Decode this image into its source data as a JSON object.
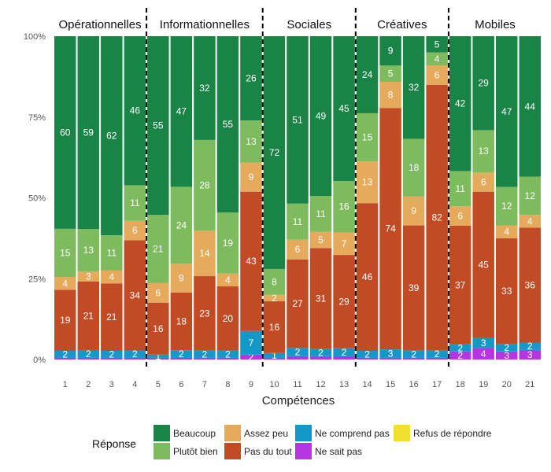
{
  "chart_data": {
    "type": "bar",
    "stacked": true,
    "percent": true,
    "xlabel": "Compétences",
    "ylabel": "",
    "ylim": [
      0,
      100
    ],
    "yticks": [
      "0%",
      "25%",
      "50%",
      "75%",
      "100%"
    ],
    "categories": [
      "1",
      "2",
      "3",
      "4",
      "5",
      "6",
      "7",
      "8",
      "9",
      "10",
      "11",
      "12",
      "13",
      "14",
      "15",
      "16",
      "17",
      "18",
      "19",
      "20",
      "21"
    ],
    "groups": [
      {
        "name": "Opérationnelles",
        "categories": [
          "1",
          "2",
          "3",
          "4"
        ]
      },
      {
        "name": "Informationnelles",
        "categories": [
          "5",
          "6",
          "7",
          "8",
          "9"
        ]
      },
      {
        "name": "Sociales",
        "categories": [
          "10",
          "11",
          "12",
          "13"
        ]
      },
      {
        "name": "Créatives",
        "categories": [
          "14",
          "15",
          "16",
          "17"
        ]
      },
      {
        "name": "Mobiles",
        "categories": [
          "18",
          "19",
          "20",
          "21"
        ]
      }
    ],
    "legend": {
      "title": "Réponse",
      "position": "bottom",
      "order": [
        "Beaucoup",
        "Plutôt bien",
        "Assez peu",
        "Pas du tout",
        "Ne comprend pas",
        "Ne sait pas",
        "Refus de répondre"
      ]
    },
    "series": [
      {
        "name": "Ne sait pas",
        "color": "#b535e0",
        "values": [
          0.5,
          0.5,
          0.5,
          0.5,
          0.5,
          0.5,
          0.5,
          0.5,
          1.5,
          0.5,
          1,
          1,
          1,
          0.5,
          0.5,
          0.5,
          0.5,
          2.5,
          3.5,
          2.5,
          3
        ],
        "labels": [
          "",
          "",
          "",
          "",
          "",
          "",
          "",
          "",
          "2",
          "",
          "",
          "",
          "",
          "",
          "",
          "",
          "",
          "2",
          "4",
          "3",
          "3"
        ]
      },
      {
        "name": "Ne comprend pas",
        "color": "#1499c7",
        "values": [
          2.2,
          2.4,
          2.2,
          2.3,
          1,
          2.4,
          2.2,
          2.3,
          7.3,
          1.5,
          2.5,
          2.2,
          2.5,
          2.2,
          2.6,
          2.3,
          2.4,
          2.2,
          3.3,
          2.3,
          2.3
        ],
        "labels": [
          "2",
          "2",
          "2",
          "2",
          "1",
          "2",
          "2",
          "2",
          "7",
          "1",
          "2",
          "2",
          "2",
          "2",
          "3",
          "2",
          "2",
          "2",
          "3",
          "2",
          "2"
        ]
      },
      {
        "name": "Pas du tout",
        "color": "#c04b24",
        "values": [
          19,
          21,
          21,
          34,
          16,
          18,
          23,
          20,
          43,
          16,
          27,
          31,
          29,
          46,
          74,
          39,
          82,
          37,
          45,
          33,
          36
        ],
        "labels": [
          "19",
          "21",
          "21",
          "34",
          "16",
          "18",
          "23",
          "20",
          "43",
          "16",
          "27",
          "31",
          "29",
          "46",
          "74",
          "39",
          "82",
          "37",
          "45",
          "33",
          "36"
        ]
      },
      {
        "name": "Assez peu",
        "color": "#e5aa5c",
        "values": [
          4,
          3,
          4,
          6,
          6,
          9,
          14,
          4,
          9,
          2,
          6,
          5,
          7,
          13,
          8,
          9,
          6,
          6,
          6,
          4,
          4
        ],
        "labels": [
          "4",
          "3",
          "4",
          "6",
          "6",
          "9",
          "14",
          "4",
          "9",
          "2",
          "6",
          "5",
          "7",
          "13",
          "8",
          "9",
          "6",
          "6",
          "6",
          "4",
          "4"
        ]
      },
      {
        "name": "Plutôt bien",
        "color": "#7dbb5e",
        "values": [
          15,
          13,
          11,
          11,
          21,
          24,
          28,
          19,
          13,
          8,
          11,
          11,
          16,
          15,
          5,
          18,
          4,
          11,
          13,
          12,
          12
        ],
        "labels": [
          "15",
          "13",
          "11",
          "11",
          "21",
          "24",
          "28",
          "19",
          "13",
          "8",
          "11",
          "11",
          "16",
          "15",
          "5",
          "18",
          "4",
          "11",
          "13",
          "12",
          "12"
        ]
      },
      {
        "name": "Beaucoup",
        "color": "#1a8346",
        "values": [
          60,
          59,
          62,
          46,
          55,
          47,
          32,
          55,
          26,
          72,
          51,
          49,
          45,
          24,
          9,
          32,
          5,
          42,
          29,
          47,
          44
        ],
        "labels": [
          "60",
          "59",
          "62",
          "46",
          "55",
          "47",
          "32",
          "55",
          "26",
          "72",
          "51",
          "49",
          "45",
          "24",
          "9",
          "32",
          "5",
          "42",
          "29",
          "47",
          "44"
        ]
      },
      {
        "name": "Refus de répondre",
        "color": "#f0e130",
        "values": [
          0,
          0,
          0,
          0,
          0,
          0,
          0,
          0,
          0,
          0,
          0,
          0,
          0,
          0,
          0,
          0,
          0,
          0,
          0,
          0,
          0
        ],
        "labels": [
          "",
          "",
          "",
          "",
          "",
          "",
          "",
          "",
          "",
          "",
          "",
          "",
          "",
          "",
          "",
          "",
          "",
          "",
          "",
          "",
          ""
        ]
      }
    ]
  }
}
